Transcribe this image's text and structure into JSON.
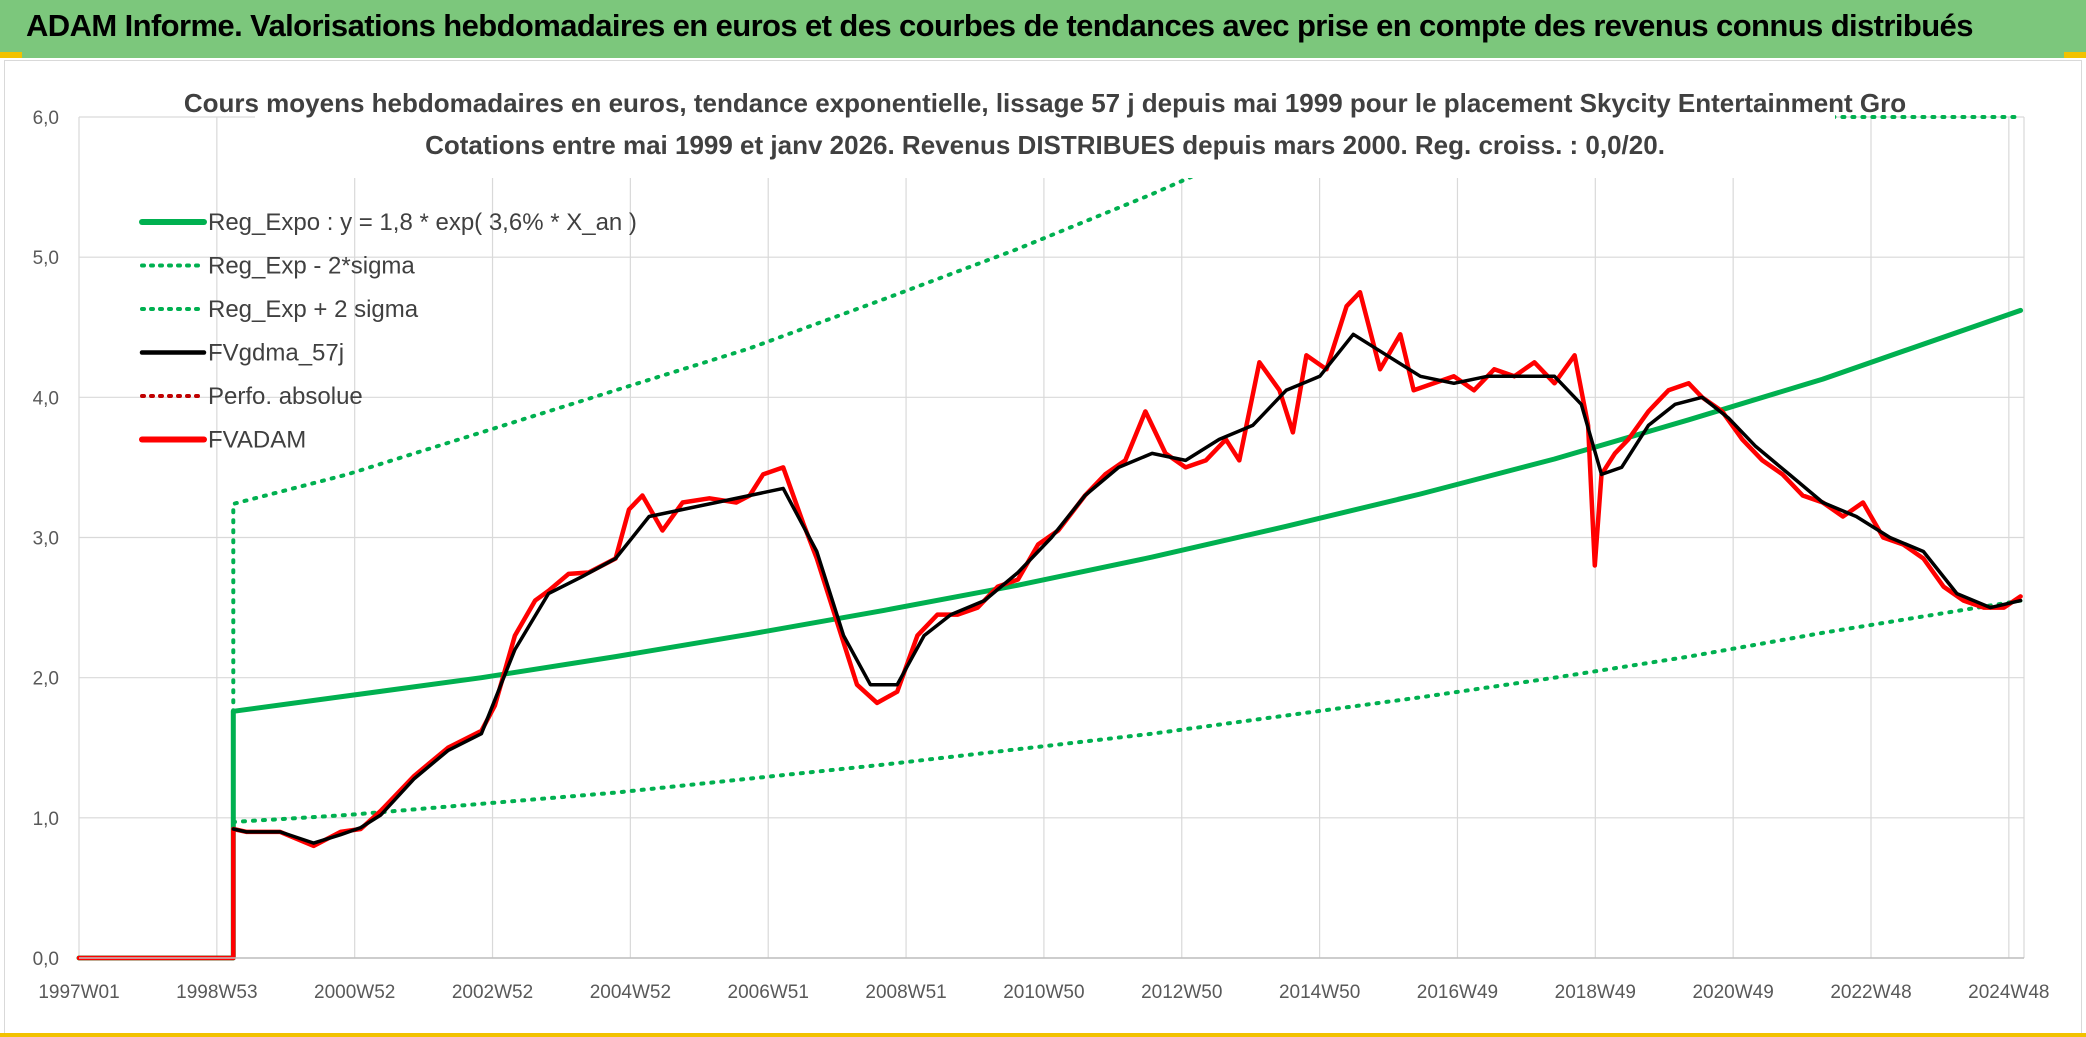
{
  "header": {
    "title": "ADAM Informe. Valorisations hebdomadaires en euros et des courbes de tendances avec prise en compte des revenus connus distribués"
  },
  "colors": {
    "header_band": "#7cc77c",
    "trend": "#00b050",
    "fvgdma": "#000000",
    "fvadam": "#ff0000",
    "perfo": "#c00000",
    "grid": "#d9d9d9"
  },
  "chart_data": {
    "type": "line",
    "title_line1": "Cours moyens hebdomadaires en euros, tendance exponentielle, lissage 57 j depuis mai 1999 pour le placement Skycity Entertainment Gro",
    "title_line2": "Cotations entre mai 1999 et janv 2026. Revenus DISTRIBUES depuis mars 2000. Reg. croiss. : 0,0/20.",
    "ylim": [
      0,
      6
    ],
    "xlim": [
      1997.0,
      2026.0
    ],
    "y_ticks": [
      "0,0",
      "1,0",
      "2,0",
      "3,0",
      "4,0",
      "5,0",
      "6,0"
    ],
    "x_ticks": [
      "1997W01",
      "1998W53",
      "2000W52",
      "2002W52",
      "2004W52",
      "2006W51",
      "2008W51",
      "2010W50",
      "2012W50",
      "2014W50",
      "2016W49",
      "2018W49",
      "2020W49",
      "2022W48",
      "2024W48"
    ],
    "grid": "both",
    "legend_position": "top-left",
    "legend": [
      {
        "label": "Reg_Expo : y = 1,8 * exp( 3,6% *  X_an )",
        "style": "solid-thick",
        "color": "#00b050"
      },
      {
        "label": "Reg_Exp - 2*sigma",
        "style": "dotted",
        "color": "#00b050"
      },
      {
        "label": "Reg_Exp + 2 sigma",
        "style": "dotted",
        "color": "#00b050"
      },
      {
        "label": "FVgdma_57j",
        "style": "solid",
        "color": "#000000"
      },
      {
        "label": "Perfo. absolue",
        "style": "dotted",
        "color": "#c00000"
      },
      {
        "label": "FVADAM",
        "style": "solid-thick",
        "color": "#ff0000"
      }
    ],
    "series": [
      {
        "name": "Reg_Expo : y = 1,8 * exp( 3,6% *  X_an )",
        "x": [
          1997.0,
          1999.3,
          1999.3,
          2001,
          2003,
          2005,
          2007,
          2009,
          2011,
          2013,
          2015,
          2017,
          2019,
          2021,
          2023,
          2025.95
        ],
        "y": [
          0,
          0,
          1.76,
          1.87,
          2.0,
          2.15,
          2.31,
          2.48,
          2.66,
          2.86,
          3.08,
          3.31,
          3.56,
          3.84,
          4.13,
          4.62
        ]
      },
      {
        "name": "Reg_Exp - 2*sigma",
        "x": [
          1997.0,
          1999.3,
          1999.3,
          2001,
          2003,
          2005,
          2007,
          2009,
          2011,
          2013,
          2015,
          2017,
          2019,
          2021,
          2023,
          2025.95
        ],
        "y": [
          0,
          0,
          0.97,
          1.02,
          1.1,
          1.18,
          1.28,
          1.38,
          1.49,
          1.6,
          1.73,
          1.86,
          2.0,
          2.15,
          2.32,
          2.55
        ]
      },
      {
        "name": "Reg_Exp + 2 sigma",
        "x": [
          1997.0,
          1999.3,
          1999.3,
          2001,
          2003,
          2005,
          2007,
          2009,
          2011,
          2013,
          2013.9
        ],
        "y": [
          0,
          0,
          3.24,
          3.45,
          3.75,
          4.05,
          4.35,
          4.7,
          5.06,
          5.45,
          5.64
        ]
      },
      {
        "name": "Reg_Exp + 2 sigma",
        "x": [
          2022.1,
          2025.95
        ],
        "y": [
          6.0,
          6.0
        ]
      },
      {
        "name": "FVADAM",
        "x": [
          1997.0,
          1999.3,
          1999.3,
          1999.5,
          2000.0,
          2000.5,
          2000.9,
          2001.2,
          2001.5,
          2002.0,
          2002.5,
          2003.0,
          2003.2,
          2003.5,
          2003.8,
          2004.0,
          2004.3,
          2004.6,
          2005.0,
          2005.2,
          2005.4,
          2005.7,
          2006.0,
          2006.4,
          2006.8,
          2007.0,
          2007.2,
          2007.5,
          2007.8,
          2008.0,
          2008.3,
          2008.6,
          2008.9,
          2009.2,
          2009.5,
          2009.8,
          2010.1,
          2010.4,
          2010.7,
          2011.0,
          2011.3,
          2011.6,
          2012.0,
          2012.3,
          2012.6,
          2012.9,
          2013.2,
          2013.5,
          2013.8,
          2014.1,
          2014.3,
          2014.6,
          2014.9,
          2015.1,
          2015.3,
          2015.6,
          2015.9,
          2016.1,
          2016.4,
          2016.7,
          2016.9,
          2017.2,
          2017.5,
          2017.8,
          2018.1,
          2018.4,
          2018.7,
          2019.0,
          2019.3,
          2019.5,
          2019.6,
          2019.7,
          2019.9,
          2020.1,
          2020.4,
          2020.7,
          2021.0,
          2021.2,
          2021.5,
          2021.8,
          2022.1,
          2022.4,
          2022.7,
          2023.0,
          2023.3,
          2023.6,
          2023.9,
          2024.2,
          2024.5,
          2024.8,
          2025.1,
          2025.4,
          2025.7,
          2025.95
        ],
        "y": [
          0,
          0,
          0.92,
          0.9,
          0.9,
          0.8,
          0.9,
          0.92,
          1.05,
          1.3,
          1.5,
          1.62,
          1.8,
          2.3,
          2.55,
          2.62,
          2.74,
          2.75,
          2.85,
          3.2,
          3.3,
          3.05,
          3.25,
          3.28,
          3.25,
          3.3,
          3.45,
          3.5,
          3.1,
          2.85,
          2.4,
          1.95,
          1.82,
          1.9,
          2.3,
          2.45,
          2.45,
          2.5,
          2.65,
          2.7,
          2.95,
          3.05,
          3.3,
          3.45,
          3.55,
          3.9,
          3.6,
          3.5,
          3.55,
          3.7,
          3.55,
          4.25,
          4.05,
          3.75,
          4.3,
          4.2,
          4.65,
          4.75,
          4.2,
          4.45,
          4.05,
          4.1,
          4.15,
          4.05,
          4.2,
          4.15,
          4.25,
          4.1,
          4.3,
          3.8,
          2.8,
          3.45,
          3.6,
          3.7,
          3.9,
          4.05,
          4.1,
          4.0,
          3.9,
          3.7,
          3.55,
          3.45,
          3.3,
          3.25,
          3.15,
          3.25,
          3.0,
          2.95,
          2.85,
          2.65,
          2.55,
          2.5,
          2.5,
          2.58
        ]
      },
      {
        "name": "FVgdma_57j",
        "x": [
          1999.3,
          1999.5,
          2000.0,
          2000.5,
          2000.9,
          2001.2,
          2001.5,
          2002.0,
          2002.5,
          2003.0,
          2003.5,
          2004.0,
          2004.5,
          2005.0,
          2005.5,
          2006.0,
          2006.5,
          2007.0,
          2007.5,
          2008.0,
          2008.4,
          2008.8,
          2009.2,
          2009.6,
          2010.0,
          2010.5,
          2011.0,
          2011.5,
          2012.0,
          2012.5,
          2013.0,
          2013.5,
          2014.0,
          2014.5,
          2015.0,
          2015.5,
          2016.0,
          2016.5,
          2017.0,
          2017.5,
          2018.0,
          2018.5,
          2019.0,
          2019.4,
          2019.7,
          2020.0,
          2020.4,
          2020.8,
          2021.2,
          2021.6,
          2022.0,
          2022.5,
          2023.0,
          2023.5,
          2024.0,
          2024.5,
          2025.0,
          2025.5,
          2025.95
        ],
        "y": [
          0.92,
          0.9,
          0.9,
          0.82,
          0.88,
          0.93,
          1.02,
          1.28,
          1.48,
          1.6,
          2.2,
          2.6,
          2.72,
          2.85,
          3.15,
          3.2,
          3.25,
          3.3,
          3.35,
          2.9,
          2.3,
          1.95,
          1.95,
          2.3,
          2.45,
          2.55,
          2.75,
          3.0,
          3.3,
          3.5,
          3.6,
          3.55,
          3.7,
          3.8,
          4.05,
          4.15,
          4.45,
          4.3,
          4.15,
          4.1,
          4.15,
          4.15,
          4.15,
          3.95,
          3.45,
          3.5,
          3.8,
          3.95,
          4.0,
          3.85,
          3.65,
          3.45,
          3.25,
          3.15,
          3.0,
          2.9,
          2.6,
          2.5,
          2.55
        ]
      }
    ]
  }
}
